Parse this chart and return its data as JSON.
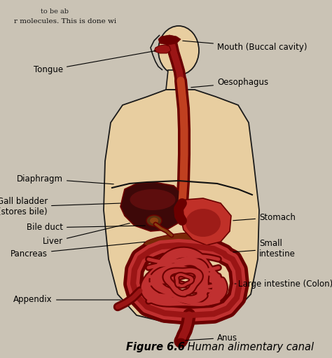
{
  "background_color": "#cac3b5",
  "body_fill": "#e8ceA0",
  "body_edge": "#1a1a1a",
  "org_dark": "#6B0000",
  "org_mid": "#9B1515",
  "org_light": "#c03030",
  "org_highlight": "#d04040",
  "liver_fill": "#4a0808",
  "stomach_fill": "#b82020",
  "caption_bold": "Figure 6.6",
  "caption_rest": " Human alimentary canal",
  "label_fontsize": 8.5,
  "caption_fontsize": 10.5,
  "top_text": "molecules. This is done wi",
  "top_text2": "to be ab"
}
